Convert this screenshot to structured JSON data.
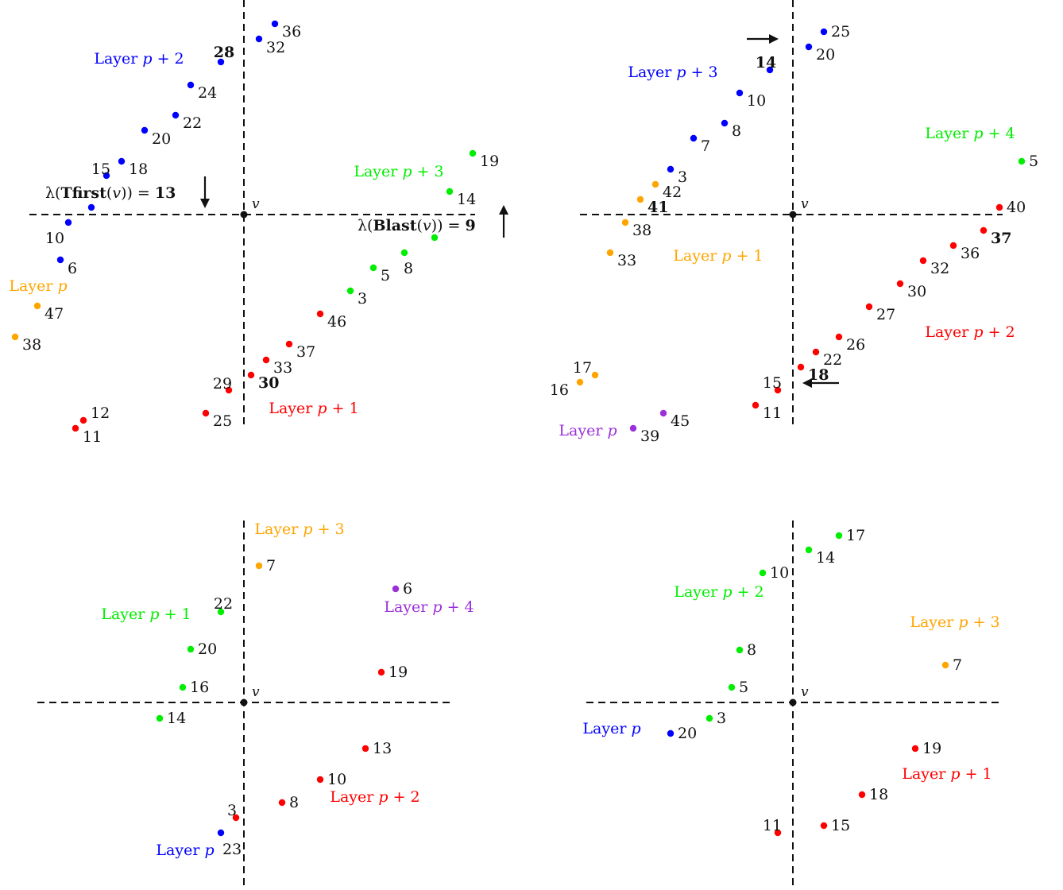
{
  "colors": {
    "blue": "#0000ff",
    "red": "#ff0000",
    "green": "#00ee00",
    "orange": "#ffa500",
    "purple": "#9b30d9"
  },
  "panels": [
    {
      "vertex_label": "v",
      "points": [
        {
          "label": "36",
          "color": "blue"
        },
        {
          "label": "32",
          "color": "blue"
        },
        {
          "label": "28",
          "color": "blue",
          "bold": true
        },
        {
          "label": "24",
          "color": "blue"
        },
        {
          "label": "22",
          "color": "blue"
        },
        {
          "label": "20",
          "color": "blue"
        },
        {
          "label": "18",
          "color": "blue"
        },
        {
          "label": "15",
          "color": "blue"
        },
        {
          "label": "",
          "color": "blue"
        },
        {
          "label": "10",
          "color": "blue"
        },
        {
          "label": "6",
          "color": "blue"
        },
        {
          "label": "47",
          "color": "orange"
        },
        {
          "label": "38",
          "color": "orange"
        },
        {
          "label": "19",
          "color": "green"
        },
        {
          "label": "14",
          "color": "green"
        },
        {
          "label": "",
          "color": "green"
        },
        {
          "label": "8",
          "color": "green"
        },
        {
          "label": "5",
          "color": "green"
        },
        {
          "label": "3",
          "color": "green"
        },
        {
          "label": "46",
          "color": "red"
        },
        {
          "label": "37",
          "color": "red"
        },
        {
          "label": "33",
          "color": "red"
        },
        {
          "label": "30",
          "color": "red",
          "bold": true
        },
        {
          "label": "29",
          "color": "red"
        },
        {
          "label": "25",
          "color": "red"
        },
        {
          "label": "12",
          "color": "red"
        },
        {
          "label": "11",
          "color": "red"
        }
      ],
      "layers": [
        {
          "text": "Layer p + 2",
          "color": "blue"
        },
        {
          "text": "Layer p",
          "color": "orange"
        },
        {
          "text": "Layer p + 3",
          "color": "green"
        },
        {
          "text": "Layer p + 1",
          "color": "red"
        }
      ],
      "formulas": [
        {
          "text": "λ(Tfirst(v)) = 13"
        },
        {
          "text": "λ(Blast(v)) = 9"
        }
      ]
    },
    {
      "vertex_label": "v",
      "points": [
        {
          "label": "25",
          "color": "blue"
        },
        {
          "label": "20",
          "color": "blue"
        },
        {
          "label": "14",
          "color": "blue",
          "bold": true
        },
        {
          "label": "10",
          "color": "blue"
        },
        {
          "label": "8",
          "color": "blue"
        },
        {
          "label": "7",
          "color": "blue"
        },
        {
          "label": "3",
          "color": "blue"
        },
        {
          "label": "42",
          "color": "orange"
        },
        {
          "label": "41",
          "color": "orange",
          "bold": true
        },
        {
          "label": "38",
          "color": "orange"
        },
        {
          "label": "33",
          "color": "orange"
        },
        {
          "label": "17",
          "color": "orange"
        },
        {
          "label": "16",
          "color": "orange"
        },
        {
          "label": "5",
          "color": "green"
        },
        {
          "label": "40",
          "color": "red"
        },
        {
          "label": "37",
          "color": "red",
          "bold": true
        },
        {
          "label": "36",
          "color": "red"
        },
        {
          "label": "32",
          "color": "red"
        },
        {
          "label": "30",
          "color": "red"
        },
        {
          "label": "27",
          "color": "red"
        },
        {
          "label": "26",
          "color": "red"
        },
        {
          "label": "22",
          "color": "red"
        },
        {
          "label": "18",
          "color": "red",
          "bold": true
        },
        {
          "label": "15",
          "color": "red"
        },
        {
          "label": "11",
          "color": "red"
        },
        {
          "label": "45",
          "color": "purple"
        },
        {
          "label": "39",
          "color": "purple"
        }
      ],
      "layers": [
        {
          "text": "Layer p + 3",
          "color": "blue"
        },
        {
          "text": "Layer p + 4",
          "color": "green"
        },
        {
          "text": "Layer p + 1",
          "color": "orange"
        },
        {
          "text": "Layer p + 2",
          "color": "red"
        },
        {
          "text": "Layer p",
          "color": "purple"
        }
      ]
    },
    {
      "vertex_label": "v",
      "points": [
        {
          "label": "7",
          "color": "orange"
        },
        {
          "label": "6",
          "color": "purple"
        },
        {
          "label": "22",
          "color": "green"
        },
        {
          "label": "20",
          "color": "green"
        },
        {
          "label": "16",
          "color": "green"
        },
        {
          "label": "14",
          "color": "green"
        },
        {
          "label": "19",
          "color": "red"
        },
        {
          "label": "13",
          "color": "red"
        },
        {
          "label": "10",
          "color": "red"
        },
        {
          "label": "8",
          "color": "red"
        },
        {
          "label": "3",
          "color": "red"
        },
        {
          "label": "23",
          "color": "blue"
        }
      ],
      "layers": [
        {
          "text": "Layer p + 3",
          "color": "orange"
        },
        {
          "text": "Layer p + 4",
          "color": "purple"
        },
        {
          "text": "Layer p + 1",
          "color": "green"
        },
        {
          "text": "Layer p + 2",
          "color": "red"
        },
        {
          "text": "Layer p",
          "color": "blue"
        }
      ]
    },
    {
      "vertex_label": "v",
      "points": [
        {
          "label": "17",
          "color": "green"
        },
        {
          "label": "14",
          "color": "green"
        },
        {
          "label": "10",
          "color": "green"
        },
        {
          "label": "8",
          "color": "green"
        },
        {
          "label": "5",
          "color": "green"
        },
        {
          "label": "3",
          "color": "green"
        },
        {
          "label": "20",
          "color": "blue"
        },
        {
          "label": "7",
          "color": "orange"
        },
        {
          "label": "19",
          "color": "red"
        },
        {
          "label": "18",
          "color": "red"
        },
        {
          "label": "15",
          "color": "red"
        },
        {
          "label": "11",
          "color": "red"
        }
      ],
      "layers": [
        {
          "text": "Layer p + 2",
          "color": "green"
        },
        {
          "text": "Layer p + 3",
          "color": "orange"
        },
        {
          "text": "Layer p + 1",
          "color": "red"
        },
        {
          "text": "Layer p",
          "color": "blue"
        }
      ]
    }
  ]
}
